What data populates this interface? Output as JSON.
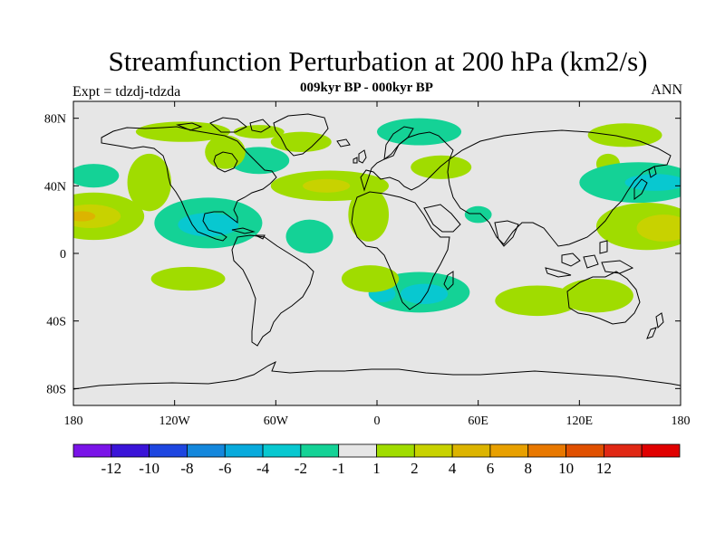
{
  "header": {
    "title": "Streamfunction Perturbation at 200 hPa (km2/s)",
    "subtitle": "009kyr BP - 000kyr BP",
    "left_label": "Expt = tdzdj-tdzda",
    "right_label": "ANN"
  },
  "chart_data": {
    "type": "heatmap",
    "title": "Streamfunction Perturbation at 200 hPa (km2/s)",
    "subtitle": "009kyr BP - 000kyr BP",
    "variable_units": "km2/s",
    "lon_range": [
      -180,
      180
    ],
    "lat_range": [
      -90,
      90
    ],
    "lon_ticks": [
      {
        "value": -180,
        "label": "180"
      },
      {
        "value": -120,
        "label": "120W"
      },
      {
        "value": -60,
        "label": "60W"
      },
      {
        "value": 0,
        "label": "0"
      },
      {
        "value": 60,
        "label": "60E"
      },
      {
        "value": 120,
        "label": "120E"
      },
      {
        "value": 180,
        "label": "180"
      }
    ],
    "lat_ticks": [
      {
        "value": 80,
        "label": "80N"
      },
      {
        "value": 40,
        "label": "40N"
      },
      {
        "value": 0,
        "label": "0"
      },
      {
        "value": -40,
        "label": "40S"
      },
      {
        "value": -80,
        "label": "80S"
      }
    ],
    "background_range": [
      -1,
      1
    ],
    "background_color": "#e6e6e6",
    "colorbar": {
      "colors": [
        "#7a14e8",
        "#3a14d8",
        "#1e46e0",
        "#1487dc",
        "#08aadc",
        "#08c8d0",
        "#14d296",
        "#e6e6e6",
        "#a0dc00",
        "#c8d200",
        "#dcb400",
        "#e8a000",
        "#e87800",
        "#e05000",
        "#e02814",
        "#e00000"
      ],
      "labels": [
        "-12",
        "-10",
        "-8",
        "-6",
        "-4",
        "-2",
        "-1",
        "1",
        "2",
        "4",
        "6",
        "8",
        "10",
        "12"
      ]
    },
    "anomalies": [
      {
        "lon": -115,
        "lat": 72,
        "rlon": 28,
        "rlat": 6,
        "level": 2
      },
      {
        "lon": -70,
        "lat": 72,
        "rlon": 15,
        "rlat": 4,
        "level": 2
      },
      {
        "lon": -45,
        "lat": 66,
        "rlon": 18,
        "rlat": 6,
        "level": 2
      },
      {
        "lon": -70,
        "lat": 55,
        "rlon": 18,
        "rlat": 8,
        "level": -2
      },
      {
        "lon": -90,
        "lat": 60,
        "rlon": 12,
        "rlat": 10,
        "level": 2
      },
      {
        "lon": 25,
        "lat": 72,
        "rlon": 25,
        "rlat": 8,
        "level": -2
      },
      {
        "lon": 147,
        "lat": 70,
        "rlon": 22,
        "rlat": 7,
        "level": 2
      },
      {
        "lon": 137,
        "lat": 53,
        "rlon": 7,
        "rlat": 6,
        "level": 2
      },
      {
        "lon": 38,
        "lat": 51,
        "rlon": 18,
        "rlat": 7,
        "level": 2
      },
      {
        "lon": -135,
        "lat": 42,
        "rlon": 13,
        "rlat": 17,
        "level": 2
      },
      {
        "lon": -168,
        "lat": 46,
        "rlon": 15,
        "rlat": 7,
        "level": -2
      },
      {
        "lon": -28,
        "lat": 40,
        "rlon": 35,
        "rlat": 9,
        "level": 2
      },
      {
        "lon": -30,
        "lat": 40,
        "rlon": 14,
        "rlat": 4,
        "level": 4
      },
      {
        "lon": -5,
        "lat": 23,
        "rlon": 12,
        "rlat": 16,
        "level": 2
      },
      {
        "lon": -168,
        "lat": 22,
        "rlon": 30,
        "rlat": 14,
        "level": 2
      },
      {
        "lon": -170,
        "lat": 22,
        "rlon": 18,
        "rlat": 7,
        "level": 4
      },
      {
        "lon": -175,
        "lat": 22,
        "rlon": 8,
        "rlat": 3,
        "level": 6
      },
      {
        "lon": -100,
        "lat": 18,
        "rlon": 32,
        "rlat": 15,
        "level": -2
      },
      {
        "lon": -100,
        "lat": 17,
        "rlon": 18,
        "rlat": 7,
        "level": -4
      },
      {
        "lon": -40,
        "lat": 10,
        "rlon": 14,
        "rlat": 10,
        "level": -2
      },
      {
        "lon": 60,
        "lat": 23,
        "rlon": 8,
        "rlat": 5,
        "level": -2
      },
      {
        "lon": 155,
        "lat": 42,
        "rlon": 35,
        "rlat": 12,
        "level": -2
      },
      {
        "lon": 165,
        "lat": 42,
        "rlon": 18,
        "rlat": 5,
        "level": -4
      },
      {
        "lon": 160,
        "lat": 16,
        "rlon": 30,
        "rlat": 14,
        "level": 2
      },
      {
        "lon": 170,
        "lat": 15,
        "rlon": 16,
        "rlat": 8,
        "level": 4
      },
      {
        "lon": -112,
        "lat": -15,
        "rlon": 22,
        "rlat": 7,
        "level": 2
      },
      {
        "lon": 25,
        "lat": -23,
        "rlon": 30,
        "rlat": 12,
        "level": -2
      },
      {
        "lon": 3,
        "lat": -24,
        "rlon": 8,
        "rlat": 5,
        "level": -4
      },
      {
        "lon": -4,
        "lat": -15,
        "rlon": 17,
        "rlat": 8,
        "level": 2
      },
      {
        "lon": 28,
        "lat": -24,
        "rlon": 14,
        "rlat": 6,
        "level": -4
      },
      {
        "lon": 95,
        "lat": -28,
        "rlon": 25,
        "rlat": 9,
        "level": 2
      },
      {
        "lon": 130,
        "lat": -25,
        "rlon": 22,
        "rlat": 10,
        "level": 2
      }
    ]
  }
}
